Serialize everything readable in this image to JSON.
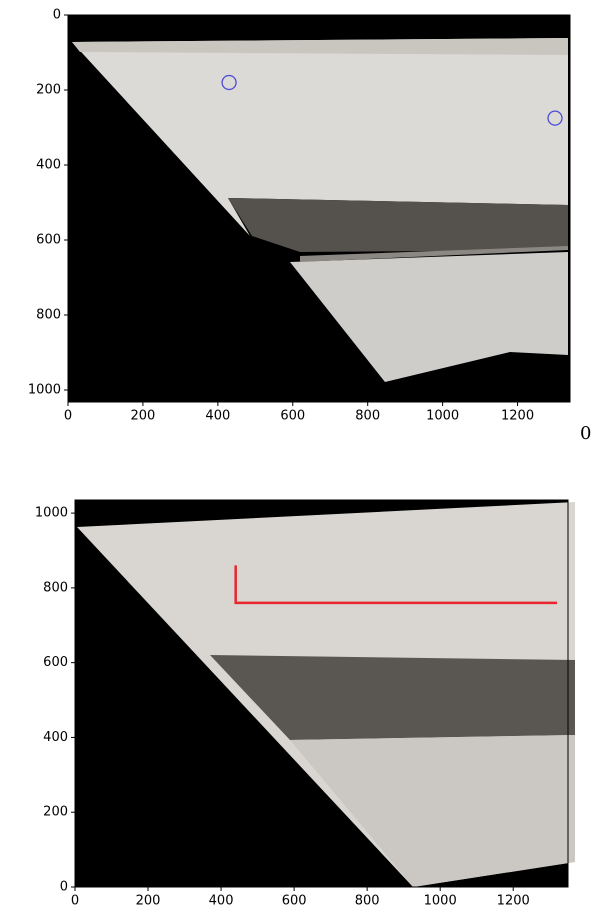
{
  "chart_data": [
    {
      "type": "image",
      "xlim": [
        0,
        1340
      ],
      "ylim": [
        1032,
        0
      ],
      "xticks": [
        0,
        200,
        400,
        600,
        800,
        1000,
        1200
      ],
      "yticks": [
        0,
        200,
        400,
        600,
        800,
        1000
      ],
      "markers": {
        "x": [
          430,
          1300
        ],
        "y": [
          180,
          275
        ],
        "color": "#4b4bd6"
      }
    },
    {
      "type": "image",
      "xlim": [
        0,
        1350
      ],
      "ylim": [
        0,
        1035
      ],
      "xticks": [
        0,
        200,
        400,
        600,
        800,
        1000,
        1200
      ],
      "yticks": [
        0,
        200,
        400,
        600,
        800,
        1000
      ],
      "line": {
        "x": [
          440,
          440,
          1320
        ],
        "y": [
          860,
          760,
          760
        ],
        "color": "#e8262b"
      }
    }
  ],
  "side_text": "0"
}
